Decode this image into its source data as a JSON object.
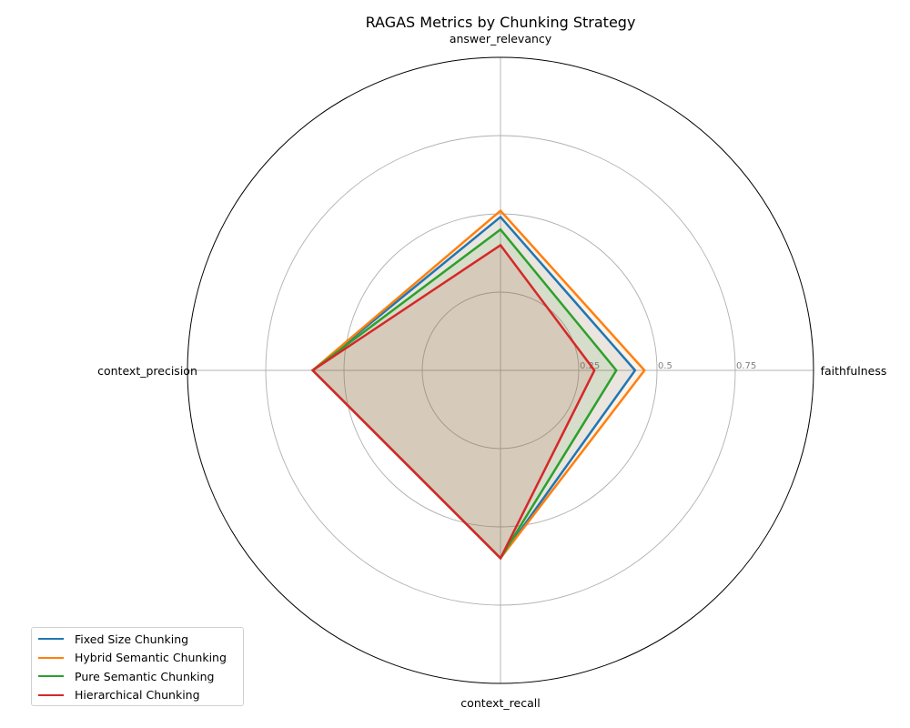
{
  "chart_data": {
    "type": "radar",
    "title": "RAGAS Metrics by Chunking Strategy",
    "axes": [
      "faithfulness",
      "answer_relevancy",
      "context_precision",
      "context_recall"
    ],
    "rlim": [
      0,
      1
    ],
    "radial_ticks": [
      0.25,
      0.5,
      0.75
    ],
    "radial_tick_labels": [
      "0.25",
      "0.5",
      "0.75"
    ],
    "grid": true,
    "legend_position": "lower-left",
    "series": [
      {
        "name": "Fixed Size Chunking",
        "color": "#1f77b4",
        "values": [
          0.43,
          0.49,
          0.6,
          0.6
        ]
      },
      {
        "name": "Hybrid Semantic Chunking",
        "color": "#ff7f0e",
        "values": [
          0.46,
          0.51,
          0.6,
          0.6
        ]
      },
      {
        "name": "Pure Semantic Chunking",
        "color": "#2ca02c",
        "values": [
          0.37,
          0.45,
          0.6,
          0.6
        ]
      },
      {
        "name": "Hierarchical Chunking",
        "color": "#d62728",
        "values": [
          0.3,
          0.4,
          0.6,
          0.6
        ]
      }
    ]
  }
}
